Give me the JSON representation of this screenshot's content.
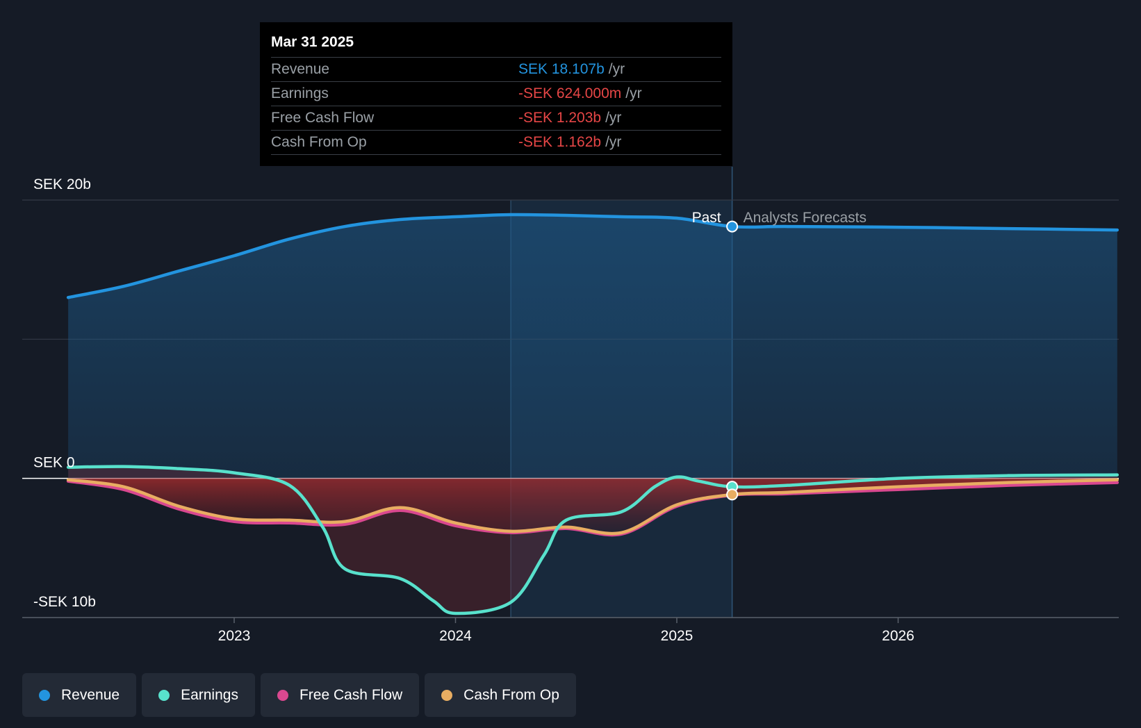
{
  "tooltip": {
    "date": "Mar 31 2025",
    "rows": [
      {
        "label": "Revenue",
        "value": "SEK 18.107b",
        "unit": "/yr",
        "color": "#2394df"
      },
      {
        "label": "Earnings",
        "value": "-SEK 624.000m",
        "unit": "/yr",
        "color": "#e64646"
      },
      {
        "label": "Free Cash Flow",
        "value": "-SEK 1.203b",
        "unit": "/yr",
        "color": "#e64646"
      },
      {
        "label": "Cash From Op",
        "value": "-SEK 1.162b",
        "unit": "/yr",
        "color": "#e64646"
      }
    ]
  },
  "chart_data": {
    "type": "line",
    "y_tick_labels": [
      "SEK 20b",
      "SEK 0",
      "-SEK 10b"
    ],
    "x_tick_labels": [
      "2023",
      "2024",
      "2025",
      "2026"
    ],
    "ylim": [
      -10,
      20
    ],
    "xlim": [
      2022.25,
      2026.99
    ],
    "past_label": "Past",
    "forecast_label": "Analysts Forecasts",
    "current_x": 2025.25,
    "series": [
      {
        "name": "Revenue",
        "color": "#2394df",
        "x": [
          2022.25,
          2022.5,
          2022.75,
          2023.0,
          2023.25,
          2023.5,
          2023.75,
          2024.0,
          2024.25,
          2024.5,
          2024.75,
          2025.0,
          2025.25,
          2025.5,
          2026.0,
          2026.5,
          2026.99
        ],
        "values": [
          13.0,
          13.8,
          14.9,
          16.0,
          17.2,
          18.1,
          18.6,
          18.8,
          18.95,
          18.9,
          18.8,
          18.7,
          18.1,
          18.1,
          18.05,
          17.95,
          17.85
        ]
      },
      {
        "name": "Earnings",
        "color": "#58e1cc",
        "x": [
          2022.25,
          2022.5,
          2022.75,
          2023.0,
          2023.25,
          2023.4,
          2023.5,
          2023.75,
          2023.9,
          2024.0,
          2024.25,
          2024.4,
          2024.5,
          2024.75,
          2024.9,
          2025.0,
          2025.1,
          2025.25,
          2025.5,
          2026.0,
          2026.5,
          2026.99
        ],
        "values": [
          0.8,
          0.85,
          0.7,
          0.4,
          -0.5,
          -3.5,
          -6.5,
          -7.2,
          -8.8,
          -9.7,
          -8.9,
          -5.5,
          -3.0,
          -2.4,
          -0.6,
          0.1,
          -0.2,
          -0.6,
          -0.5,
          0.0,
          0.2,
          0.25
        ]
      },
      {
        "name": "Free Cash Flow",
        "color": "#d9488f",
        "x": [
          2022.25,
          2022.5,
          2022.75,
          2023.0,
          2023.25,
          2023.5,
          2023.75,
          2024.0,
          2024.25,
          2024.5,
          2024.75,
          2025.0,
          2025.25,
          2025.5,
          2026.0,
          2026.5,
          2026.99
        ],
        "values": [
          -0.2,
          -0.8,
          -2.2,
          -3.1,
          -3.2,
          -3.3,
          -2.3,
          -3.4,
          -3.9,
          -3.6,
          -4.0,
          -2.0,
          -1.2,
          -1.1,
          -0.8,
          -0.5,
          -0.3
        ]
      },
      {
        "name": "Cash From Op",
        "color": "#e8ad62",
        "x": [
          2022.25,
          2022.5,
          2022.75,
          2023.0,
          2023.25,
          2023.5,
          2023.75,
          2024.0,
          2024.25,
          2024.5,
          2024.75,
          2025.0,
          2025.25,
          2025.5,
          2026.0,
          2026.5,
          2026.99
        ],
        "values": [
          -0.1,
          -0.6,
          -2.0,
          -2.9,
          -3.0,
          -3.1,
          -2.1,
          -3.2,
          -3.8,
          -3.5,
          -3.9,
          -1.9,
          -1.16,
          -1.0,
          -0.6,
          -0.3,
          -0.1
        ]
      }
    ],
    "legend": [
      {
        "name": "Revenue",
        "color": "#2394df"
      },
      {
        "name": "Earnings",
        "color": "#58e1cc"
      },
      {
        "name": "Free Cash Flow",
        "color": "#d9488f"
      },
      {
        "name": "Cash From Op",
        "color": "#e8ad62"
      }
    ]
  }
}
